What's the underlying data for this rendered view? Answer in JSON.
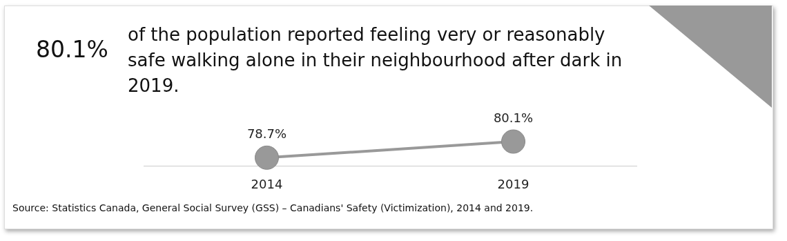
{
  "chart_data": {
    "type": "line",
    "title": "80.1%",
    "subtitle": "of the population reported feeling very or reasonably safe walking alone in their neighbourhood after dark in 2019.",
    "categories": [
      "2014",
      "2019"
    ],
    "series": [
      {
        "color": "#999999",
        "values": [
          78.7,
          80.1
        ],
        "value_labels": [
          "78.7%",
          "80.1%"
        ]
      }
    ],
    "marker": "circle",
    "line_style": "solid",
    "grid": false,
    "legend": false,
    "annotations": [
      "Source: Statistics Canada, General Social Survey (GSS) – Canadians' Safety (Victimization), 2014 and 2019."
    ]
  }
}
